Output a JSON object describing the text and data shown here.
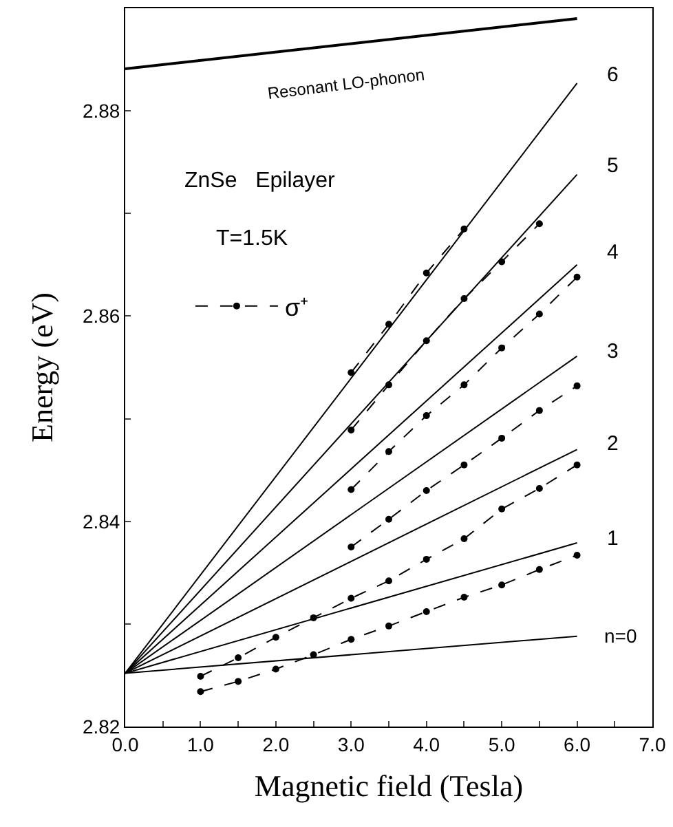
{
  "chart_data": {
    "type": "line",
    "xlabel": "Magnetic field (Tesla)",
    "ylabel": "Energy (eV)",
    "xlim": [
      0,
      7
    ],
    "ylim": [
      2.82,
      2.89
    ],
    "xticks": [
      {
        "value": 0,
        "label": "0.0"
      },
      {
        "value": 0.5,
        "label": null
      },
      {
        "value": 1,
        "label": "1.0"
      },
      {
        "value": 1.5,
        "label": null
      },
      {
        "value": 2,
        "label": "2.0"
      },
      {
        "value": 2.5,
        "label": null
      },
      {
        "value": 3,
        "label": "3.0"
      },
      {
        "value": 3.5,
        "label": null
      },
      {
        "value": 4,
        "label": "4.0"
      },
      {
        "value": 4.5,
        "label": null
      },
      {
        "value": 5,
        "label": "5.0"
      },
      {
        "value": 5.5,
        "label": null
      },
      {
        "value": 6,
        "label": "6.0"
      },
      {
        "value": 6.5,
        "label": null
      },
      {
        "value": 7,
        "label": "7.0"
      }
    ],
    "yticks": [
      2.82,
      {
        "value": 2.83,
        "label": null
      },
      2.84,
      {
        "value": 2.85,
        "label": null
      },
      2.86,
      {
        "value": 2.87,
        "label": null
      },
      2.88
    ],
    "legend": "top left",
    "series": [
      {
        "color": "#000000",
        "x": [
          0,
          6
        ],
        "values": [
          2.8841,
          2.889
        ],
        "line_style": "solid",
        "marker": "none"
      },
      {
        "color": "#000000",
        "x": [
          0,
          6
        ],
        "values": [
          2.8252,
          2.8827
        ],
        "line_style": "solid",
        "marker": "none"
      },
      {
        "color": "#000000",
        "x": [
          0,
          6
        ],
        "values": [
          2.8252,
          2.8738
        ],
        "line_style": "solid",
        "marker": "none"
      },
      {
        "color": "#000000",
        "x": [
          0,
          6
        ],
        "values": [
          2.8252,
          2.865
        ],
        "line_style": "solid",
        "marker": "none"
      },
      {
        "color": "#000000",
        "x": [
          0,
          6
        ],
        "values": [
          2.8252,
          2.8561
        ],
        "line_style": "solid",
        "marker": "none"
      },
      {
        "color": "#000000",
        "x": [
          0,
          6
        ],
        "values": [
          2.8252,
          2.847
        ],
        "line_style": "solid",
        "marker": "none"
      },
      {
        "color": "#000000",
        "x": [
          0,
          6
        ],
        "values": [
          2.8252,
          2.8379
        ],
        "line_style": "solid",
        "marker": "none"
      },
      {
        "color": "#000000",
        "x": [
          0,
          6
        ],
        "values": [
          2.8252,
          2.8288
        ],
        "line_style": "solid",
        "marker": "none"
      },
      {
        "name": "σ⁺",
        "color": "#000000",
        "x": [
          1,
          1.5,
          2,
          2.5,
          3,
          3.5,
          4,
          4.5,
          5,
          5.5,
          6
        ],
        "values": [
          2.8234,
          2.8244,
          2.8256,
          2.827,
          2.8285,
          2.8298,
          2.8312,
          2.8326,
          2.8338,
          2.8353,
          2.8367
        ],
        "line_style": "dashed",
        "marker": "circle"
      },
      {
        "color": "#000000",
        "x": [
          1,
          1.5,
          2,
          2.5,
          3,
          3.5,
          4,
          4.5,
          5,
          5.5,
          6
        ],
        "values": [
          2.8249,
          2.8267,
          2.8287,
          2.8306,
          2.8325,
          2.8342,
          2.8363,
          2.8383,
          2.8412,
          2.8432,
          2.8455
        ],
        "line_style": "dashed",
        "marker": "circle"
      },
      {
        "color": "#000000",
        "x": [
          3,
          3.5,
          4,
          4.5,
          5,
          5.5,
          6
        ],
        "values": [
          2.8375,
          2.8402,
          2.843,
          2.8455,
          2.8481,
          2.8508,
          2.8532
        ],
        "line_style": "dashed",
        "marker": "circle"
      },
      {
        "color": "#000000",
        "x": [
          3,
          3.5,
          4,
          4.5,
          5,
          5.5,
          6
        ],
        "values": [
          2.8431,
          2.8468,
          2.8503,
          2.8533,
          2.8569,
          2.8602,
          2.8638
        ],
        "line_style": "dashed",
        "marker": "circle"
      },
      {
        "color": "#000000",
        "x": [
          3,
          3.5,
          4,
          4.5,
          5,
          5.5
        ],
        "values": [
          2.8489,
          2.8533,
          2.8576,
          2.8617,
          2.8653,
          2.869
        ],
        "line_style": "dashed",
        "marker": "circle"
      },
      {
        "color": "#000000",
        "x": [
          3,
          3.5,
          4,
          4.5
        ],
        "values": [
          2.8545,
          2.8592,
          2.8642,
          2.8685
        ],
        "line_style": "dashed",
        "marker": "circle"
      }
    ],
    "annotations": [
      "Resonant LO-phonon",
      "6",
      "5",
      "4",
      "3",
      "2",
      "1",
      "n=0",
      "ZnSe   Epilayer",
      "T=1.5K"
    ]
  }
}
